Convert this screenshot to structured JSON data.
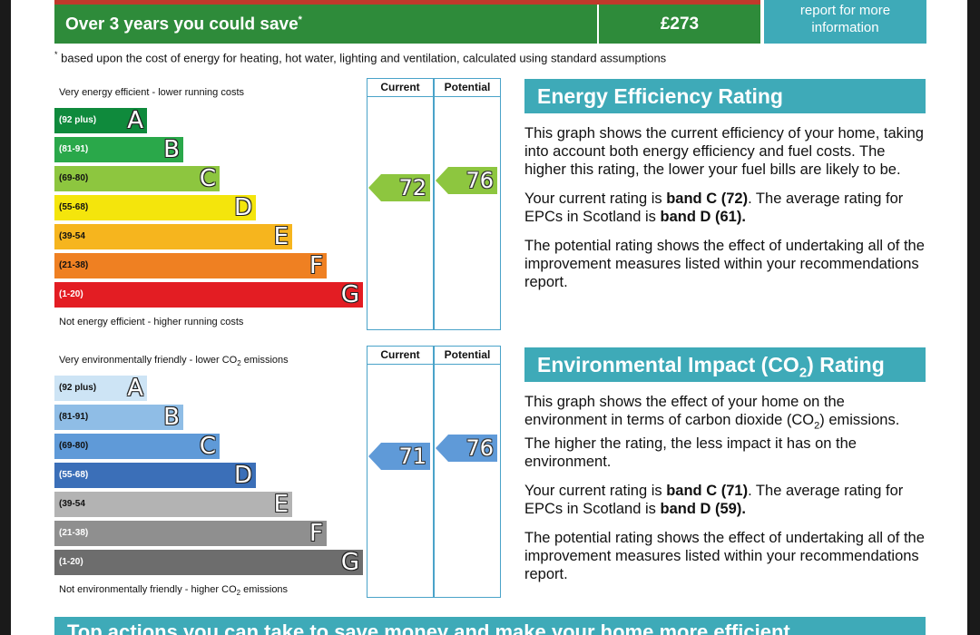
{
  "savings": {
    "label": "Over 3 years you could save",
    "asterisk": "*",
    "amount": "£273",
    "report_line1": "report for more",
    "report_line2": "information",
    "footnote_mark": "*",
    "footnote": "based upon the cost of energy for heating, hot water, lighting and ventilation, calculated using standard assumptions"
  },
  "colors": {
    "banner_green": "#2e8b3a",
    "accent_teal": "#3eaab8",
    "column_border": "#4aa3c9"
  },
  "eer_chart": {
    "top_label": "Very energy efficient - lower running costs",
    "bottom_label": "Not energy efficient - higher running costs",
    "current_header": "Current",
    "potential_header": "Potential",
    "bands": [
      {
        "range": "(92 plus)",
        "letter": "A",
        "color": "#0f8a3c",
        "text_color": "#ffffff"
      },
      {
        "range": "(81-91)",
        "letter": "B",
        "color": "#2aa84a",
        "text_color": "#ffffff"
      },
      {
        "range": "(69-80)",
        "letter": "C",
        "color": "#8dc63f",
        "text_color": "#111111"
      },
      {
        "range": "(55-68)",
        "letter": "D",
        "color": "#f4e50c",
        "text_color": "#111111"
      },
      {
        "range": "(39-54",
        "letter": "E",
        "color": "#f6b51e",
        "text_color": "#111111"
      },
      {
        "range": "(21-38)",
        "letter": "F",
        "color": "#ef8022",
        "text_color": "#111111"
      },
      {
        "range": "(1-20)",
        "letter": "G",
        "color": "#e31d23",
        "text_color": "#ffffff"
      }
    ],
    "current_value": 72,
    "potential_value": 76,
    "arrow_color": "#8dc63f"
  },
  "eir_chart": {
    "top_label": "Very environmentally friendly - lower CO",
    "top_label_sub": "2",
    "top_label_end": " emissions",
    "bottom_label": "Not environmentally friendly - higher CO",
    "bottom_label_sub": "2",
    "bottom_label_end": " emissions",
    "current_header": "Current",
    "potential_header": "Potential",
    "bands": [
      {
        "range": "(92 plus)",
        "letter": "A",
        "color": "#cde4f5",
        "text_color": "#111111"
      },
      {
        "range": "(81-91)",
        "letter": "B",
        "color": "#8fbde6",
        "text_color": "#111111"
      },
      {
        "range": "(69-80)",
        "letter": "C",
        "color": "#5f9ad8",
        "text_color": "#111111"
      },
      {
        "range": "(55-68)",
        "letter": "D",
        "color": "#3b6fb8",
        "text_color": "#ffffff"
      },
      {
        "range": "(39-54",
        "letter": "E",
        "color": "#b3b3b3",
        "text_color": "#111111"
      },
      {
        "range": "(21-38)",
        "letter": "F",
        "color": "#8f8f8f",
        "text_color": "#ffffff"
      },
      {
        "range": "(1-20)",
        "letter": "G",
        "color": "#6d6d6d",
        "text_color": "#ffffff"
      }
    ],
    "current_value": 71,
    "potential_value": 76,
    "arrow_color": "#5f9ad8"
  },
  "eer_panel": {
    "title": "Energy Efficiency Rating",
    "p1": "This graph shows the current efficiency of your home, taking into account both energy efficiency and fuel costs. The higher this rating, the lower your fuel bills are likely to be.",
    "p2_a": "Your current rating is ",
    "p2_b": "band C (72)",
    "p2_c": ". The average rating for EPCs in Scotland is ",
    "p2_d": "band D (61).",
    "p3": "The potential rating shows the effect of undertaking all of the improvement measures listed within your recommendations report."
  },
  "eir_panel": {
    "title_a": "Environmental Impact (CO",
    "title_sub": "2",
    "title_b": ") Rating",
    "p1_a": "This graph shows the effect of your home on the environment in terms of carbon dioxide (CO",
    "p1_sub": "2",
    "p1_b": ") emissions. The higher the rating, the less impact it has on the environment.",
    "p2_a": "Your current rating is ",
    "p2_b": "band C (71)",
    "p2_c": ". The average rating for EPCs in Scotland is ",
    "p2_d": "band D (59).",
    "p3": "The potential rating shows the effect of undertaking all of the improvement measures listed within your recommendations report."
  },
  "bottom_banner": "Top actions you can take to save money and make your home more efficient"
}
